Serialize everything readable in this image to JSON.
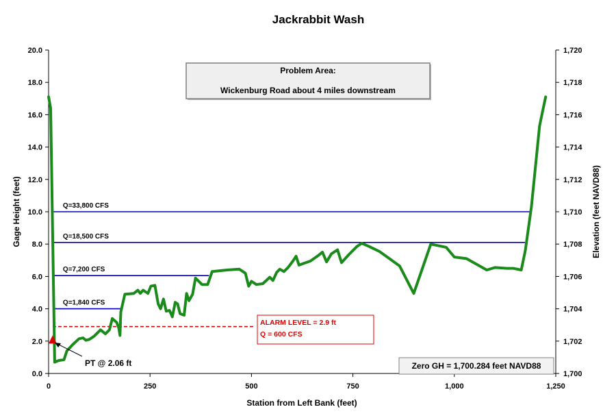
{
  "chart_data": {
    "type": "line",
    "title": "Jackrabbit  Wash",
    "xlabel": "Station from Left Bank (feet)",
    "ylabel": "Gage Height (feet)",
    "y2label": "Elevation (feet NAVD88)",
    "xlim": [
      0,
      1250
    ],
    "ylim": [
      0,
      20
    ],
    "y2lim": [
      1700,
      1720
    ],
    "x_ticks": [
      0,
      250,
      500,
      750,
      1000,
      1250
    ],
    "x_tick_labels": [
      "0",
      "250",
      "500",
      "750",
      "1,000",
      "1,250"
    ],
    "y_ticks": [
      0,
      2,
      4,
      6,
      8,
      10,
      12,
      14,
      16,
      18,
      20
    ],
    "y_tick_labels": [
      "0.0",
      "2.0",
      "4.0",
      "6.0",
      "8.0",
      "10.0",
      "12.0",
      "14.0",
      "16.0",
      "18.0",
      "20.0"
    ],
    "y2_ticks": [
      1700,
      1702,
      1704,
      1706,
      1708,
      1710,
      1712,
      1714,
      1716,
      1718,
      1720
    ],
    "y2_tick_labels": [
      "1,700",
      "1,702",
      "1,704",
      "1,706",
      "1,708",
      "1,710",
      "1,712",
      "1,714",
      "1,716",
      "1,718",
      "1,720"
    ],
    "grid": false,
    "cross_section": {
      "color": "#1a8a1a",
      "points": [
        [
          0,
          17.1
        ],
        [
          5,
          16.4
        ],
        [
          15,
          0.7
        ],
        [
          25,
          0.8
        ],
        [
          38,
          0.85
        ],
        [
          45,
          1.4
        ],
        [
          60,
          1.8
        ],
        [
          75,
          2.15
        ],
        [
          85,
          2.2
        ],
        [
          92,
          2.05
        ],
        [
          100,
          2.1
        ],
        [
          112,
          2.3
        ],
        [
          128,
          2.7
        ],
        [
          140,
          2.45
        ],
        [
          150,
          2.7
        ],
        [
          157,
          3.4
        ],
        [
          168,
          3.15
        ],
        [
          173,
          2.8
        ],
        [
          176,
          2.35
        ],
        [
          178,
          3.8
        ],
        [
          188,
          4.9
        ],
        [
          210,
          4.95
        ],
        [
          220,
          5.15
        ],
        [
          226,
          4.95
        ],
        [
          233,
          5.15
        ],
        [
          245,
          4.95
        ],
        [
          252,
          5.4
        ],
        [
          262,
          5.45
        ],
        [
          270,
          4.3
        ],
        [
          276,
          4.0
        ],
        [
          283,
          4.6
        ],
        [
          290,
          3.85
        ],
        [
          298,
          3.9
        ],
        [
          305,
          3.5
        ],
        [
          312,
          4.4
        ],
        [
          318,
          4.3
        ],
        [
          324,
          3.7
        ],
        [
          334,
          3.6
        ],
        [
          340,
          4.95
        ],
        [
          346,
          4.5
        ],
        [
          355,
          4.9
        ],
        [
          362,
          5.9
        ],
        [
          378,
          5.5
        ],
        [
          392,
          5.5
        ],
        [
          403,
          6.3
        ],
        [
          440,
          6.4
        ],
        [
          470,
          6.45
        ],
        [
          485,
          6.2
        ],
        [
          493,
          5.4
        ],
        [
          500,
          5.7
        ],
        [
          512,
          5.5
        ],
        [
          528,
          5.55
        ],
        [
          545,
          5.95
        ],
        [
          553,
          5.75
        ],
        [
          562,
          6.25
        ],
        [
          570,
          6.45
        ],
        [
          580,
          6.3
        ],
        [
          590,
          6.55
        ],
        [
          602,
          6.95
        ],
        [
          610,
          7.25
        ],
        [
          617,
          6.7
        ],
        [
          628,
          6.8
        ],
        [
          645,
          6.95
        ],
        [
          665,
          7.3
        ],
        [
          675,
          7.5
        ],
        [
          685,
          6.9
        ],
        [
          697,
          7.4
        ],
        [
          712,
          7.65
        ],
        [
          722,
          6.85
        ],
        [
          740,
          7.35
        ],
        [
          760,
          7.85
        ],
        [
          772,
          8.05
        ],
        [
          790,
          7.85
        ],
        [
          815,
          7.55
        ],
        [
          840,
          7.1
        ],
        [
          865,
          6.65
        ],
        [
          900,
          4.95
        ],
        [
          942,
          8.0
        ],
        [
          980,
          7.8
        ],
        [
          1000,
          7.2
        ],
        [
          1030,
          7.1
        ],
        [
          1080,
          6.4
        ],
        [
          1100,
          6.55
        ],
        [
          1130,
          6.5
        ],
        [
          1145,
          6.5
        ],
        [
          1165,
          6.4
        ],
        [
          1175,
          7.6
        ],
        [
          1190,
          10.3
        ],
        [
          1210,
          15.3
        ],
        [
          1225,
          17.1
        ]
      ]
    },
    "flow_levels": [
      {
        "label": "Q=33,800 CFS",
        "y": 10.0,
        "x_start": 10,
        "x_end": 1187,
        "color": "#0000bb"
      },
      {
        "label": "Q=18,500 CFS",
        "y": 8.1,
        "x_start": 10,
        "x_end": 1174,
        "color": "#0000bb"
      },
      {
        "label": "Q=7,200 CFS",
        "y": 6.05,
        "x_start": 10,
        "x_end": 395,
        "color": "#0000bb"
      },
      {
        "label": "Q=1,840 CFS",
        "y": 4.0,
        "x_start": 10,
        "x_end": 177,
        "color": "#0000bb"
      }
    ],
    "alarm_level": {
      "y": 2.9,
      "x_start": 10,
      "x_end": 505,
      "color": "#dd0000",
      "label_line1": "ALARM LEVEL = 2.9 ft",
      "label_line2": "Q = 600 CFS"
    },
    "sensor": {
      "label": "PT @ 2.06 ft",
      "x": 10,
      "y": 2.06,
      "color": "#dd0000"
    },
    "problem_area": {
      "line1": "Problem Area:",
      "line2": "Wickenburg Road about 4 miles downstream"
    },
    "datum_note": "Zero GH = 1,700.284  feet NAVD88"
  }
}
